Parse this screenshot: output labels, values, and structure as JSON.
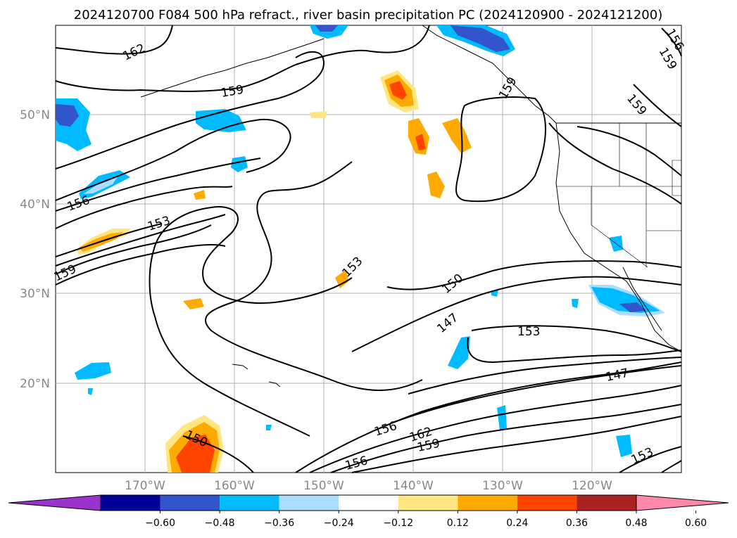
{
  "title": "2024120700 F084 500 hPa refract., river basin precipitation PC (2024120900 - 2024121200)",
  "lat_ticks": [
    "50°N",
    "40°N",
    "30°N",
    "20°N"
  ],
  "lon_ticks": [
    "170°W",
    "160°W",
    "150°W",
    "140°W",
    "130°W",
    "120°W"
  ],
  "contour_labels": [
    "162",
    "159",
    "156",
    "153",
    "159",
    "159",
    "159",
    "159",
    "156",
    "153",
    "150",
    "147",
    "153",
    "147",
    "150",
    "156",
    "162",
    "159",
    "156",
    "153"
  ],
  "colorbar": {
    "tick_labels": [
      "−0.60",
      "−0.48",
      "−0.36",
      "−0.24",
      "−0.12",
      "0.12",
      "0.24",
      "0.36",
      "0.48",
      "0.60"
    ],
    "colors": [
      "#9933cc",
      "#000099",
      "#3355cc",
      "#00bbff",
      "#aaddff",
      "#ffffff",
      "#ffe680",
      "#ffaa00",
      "#ff4400",
      "#aa2222",
      "#ff88aa"
    ]
  }
}
